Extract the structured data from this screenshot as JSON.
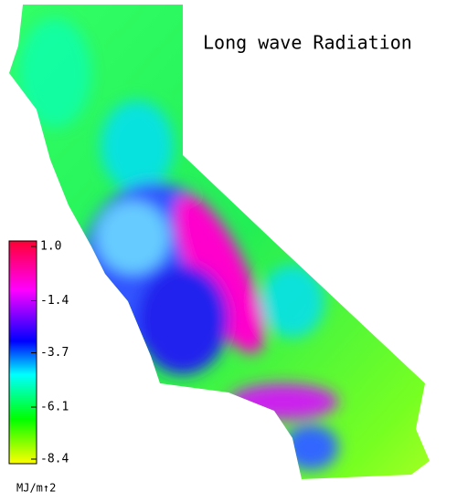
{
  "map": {
    "title": "Long wave Radiation",
    "colorbar": {
      "ticks": [
        {
          "value": 1.0,
          "label": "1.0"
        },
        -1.4,
        -3.7,
        -6.1,
        -8.4
      ],
      "unit": "MJ/m↑2"
    }
  }
}
